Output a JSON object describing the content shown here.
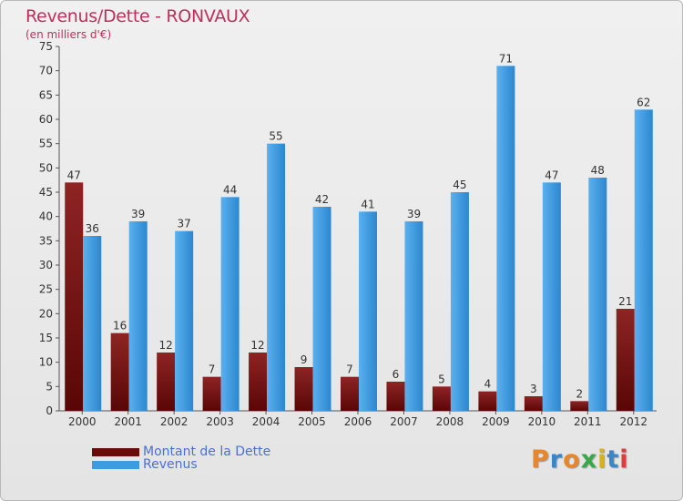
{
  "colors": {
    "title": "#c0305a",
    "dette": "#7a1010",
    "revenus": "#3d9be0",
    "legend_text": "#4a6fd8"
  },
  "chart_data": {
    "type": "bar",
    "title": "Revenus/Dette - RONVAUX",
    "subtitle": "(en milliers d'€)",
    "xlabel": "",
    "ylabel": "",
    "ylim": [
      0,
      75
    ],
    "ytick_step": 5,
    "grid": false,
    "legend_position": "bottom-left",
    "categories": [
      "2000",
      "2001",
      "2002",
      "2003",
      "2004",
      "2005",
      "2006",
      "2007",
      "2008",
      "2009",
      "2010",
      "2011",
      "2012"
    ],
    "series": [
      {
        "name": "Montant de la Dette",
        "color": "#7a1010",
        "values": [
          47,
          16,
          12,
          7,
          12,
          9,
          7,
          6,
          5,
          4,
          3,
          2,
          21
        ]
      },
      {
        "name": "Revenus",
        "color": "#3d9be0",
        "values": [
          36,
          39,
          37,
          44,
          55,
          42,
          41,
          39,
          45,
          71,
          47,
          48,
          62
        ]
      }
    ]
  },
  "logo": {
    "letters": [
      "P",
      "r",
      "o",
      "x",
      "i",
      "t",
      "i"
    ],
    "colors": [
      "#e8862a",
      "#3a86c8",
      "#e8862a",
      "#3aa84a",
      "#d8b020",
      "#3a86c8",
      "#e03a3a"
    ]
  }
}
